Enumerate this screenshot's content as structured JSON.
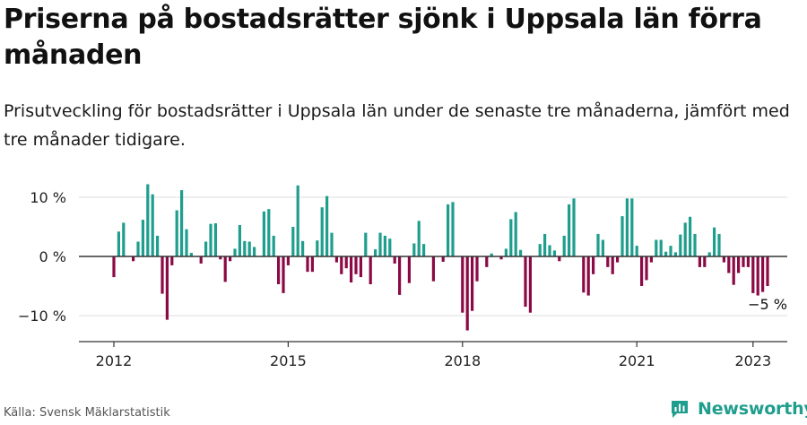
{
  "title": "Priserna på bostadsrätter sjönk i Uppsala län förra månaden",
  "subtitle": "Prisutveckling för bostadsrätter i Uppsala län under de senaste tre månaderna, jämfört med tre månader tidigare.",
  "source": "Källa: Svensk Mäklarstatistik",
  "logo_text": "Newsworthy",
  "colors": {
    "positive": "#1f9e8e",
    "negative": "#8b0a45",
    "grid": "#dddddd",
    "axis": "#333333",
    "brand": "#1f9e8e"
  },
  "chart_data": {
    "type": "bar",
    "title": "",
    "xlabel": "",
    "ylabel": "",
    "ylim": [
      -14.5,
      11
    ],
    "yticks": [
      10,
      0,
      -10
    ],
    "ytick_labels": [
      "10 %",
      "0 %",
      "−10 %"
    ],
    "xticks": [
      {
        "label": "2012",
        "year": 2012
      },
      {
        "label": "2015",
        "year": 2015
      },
      {
        "label": "2018",
        "year": 2018
      },
      {
        "label": "2021",
        "year": 2021
      },
      {
        "label": "2023",
        "year": 2023
      }
    ],
    "grid": true,
    "annotation": "−5 %",
    "start": "2012-01",
    "series": [
      {
        "values": [
          -3.5,
          4.2,
          5.7,
          0,
          -0.8,
          2.5,
          6.2,
          12.2,
          10.5,
          3.5,
          -6.3,
          -10.7,
          -1.5,
          7.8,
          11.2,
          4.6,
          0.6,
          0,
          -1.2,
          2.5,
          5.5,
          5.6,
          -0.5,
          -4.3,
          -0.8,
          1.3,
          5.3,
          2.6,
          2.5,
          1.6,
          0,
          7.6,
          8,
          3.5,
          -4.7,
          -6.2,
          -1.5,
          5,
          12,
          2.6,
          -2.6,
          -2.6,
          2.7,
          8.3,
          10.2,
          4,
          -1,
          -3,
          -2,
          -4.4,
          -3,
          -3.5,
          4,
          -4.7,
          1.2,
          4,
          3.5,
          3,
          -1.2,
          -6.5,
          0,
          -4.5,
          2.2,
          6,
          2.1,
          0,
          -4.2,
          0,
          -0.9,
          8.8,
          9.2,
          0,
          -9.5,
          -12.5,
          -9.2,
          -4.2,
          0,
          -1.8,
          0.5,
          0,
          -0.5,
          1.3,
          6.3,
          7.5,
          1.1,
          -8.5,
          -9.5,
          0,
          2.1,
          3.8,
          1.9,
          1,
          -0.8,
          3.5,
          8.8,
          9.8,
          0,
          -6.1,
          -6.6,
          -3,
          3.8,
          2.8,
          -1.8,
          -3,
          -1,
          6.8,
          9.8,
          9.8,
          1.8,
          -5,
          -4,
          -1,
          2.8,
          2.8,
          0.8,
          1.8,
          0.7,
          3.7,
          5.7,
          6.7,
          3.8,
          -1.8,
          -1.8,
          0.7,
          4.9,
          3.8,
          -1,
          -2.8,
          -4.8,
          -2.8,
          -1.8,
          -1.8,
          -6.2,
          -6.6,
          -6,
          -5
        ]
      }
    ]
  }
}
